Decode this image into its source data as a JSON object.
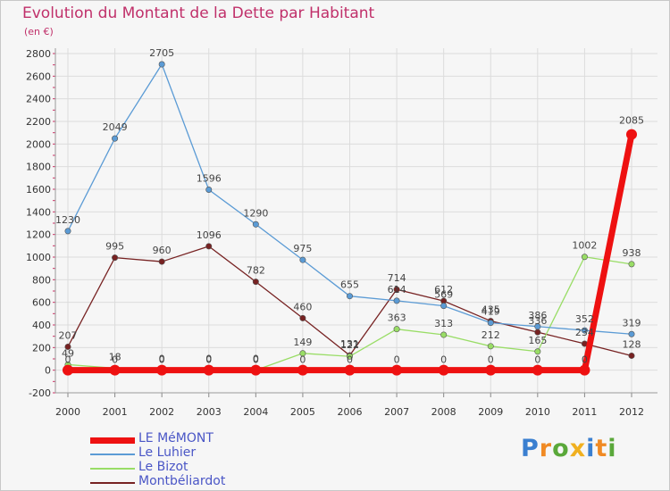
{
  "header": {
    "title": "Evolution du Montant de la Dette par Habitant",
    "unit": "(en €)"
  },
  "logo": {
    "text": "Proxiti"
  },
  "chart_data": {
    "type": "line",
    "title": "Evolution du Montant de la Dette par Habitant",
    "subtitle": "(en €)",
    "xlabel": "",
    "ylabel": "",
    "categories": [
      "2000",
      "2001",
      "2002",
      "2003",
      "2004",
      "2005",
      "2006",
      "2007",
      "2008",
      "2009",
      "2010",
      "2011",
      "2012"
    ],
    "ylim": [
      -200,
      2800
    ],
    "yticks": [
      -200,
      0,
      200,
      400,
      600,
      800,
      1000,
      1200,
      1400,
      1600,
      1800,
      2000,
      2200,
      2400,
      2600,
      2800
    ],
    "grid": true,
    "legend_position": "bottom-left",
    "series": [
      {
        "name": "LE MéMONT",
        "color": "#ee1111",
        "values": [
          0,
          0,
          0,
          0,
          0,
          0,
          0,
          0,
          0,
          0,
          0,
          0,
          2085
        ],
        "labels": [
          "0",
          "0",
          "0",
          "0",
          "0",
          "0",
          "0",
          "0",
          "0",
          "0",
          "0",
          "0",
          "2085"
        ]
      },
      {
        "name": "Le Luhier",
        "color": "#5b9bd5",
        "values": [
          1230,
          2049,
          2705,
          1596,
          1290,
          975,
          655,
          614,
          569,
          419,
          386,
          352,
          319
        ],
        "labels": [
          "1230",
          "2049",
          "2705",
          "1596",
          "1290",
          "975",
          "655",
          "614",
          "569",
          "419",
          "386",
          "352",
          "319"
        ]
      },
      {
        "name": "Le Bizot",
        "color": "#99dd66",
        "values": [
          49,
          18,
          0,
          0,
          0,
          149,
          122,
          363,
          313,
          212,
          165,
          1002,
          938
        ],
        "labels": [
          "49",
          "18",
          "0",
          "0",
          "0",
          "149",
          "122",
          "363",
          "313",
          "212",
          "165",
          "1002",
          "938"
        ]
      },
      {
        "name": "Montbéliardot",
        "color": "#772222",
        "values": [
          207,
          995,
          960,
          1096,
          782,
          460,
          131,
          714,
          612,
          435,
          336,
          234,
          128
        ],
        "labels": [
          "207",
          "995",
          "960",
          "1096",
          "782",
          "460",
          "131",
          "714",
          "612",
          "435",
          "336",
          "234",
          "128"
        ]
      }
    ]
  }
}
